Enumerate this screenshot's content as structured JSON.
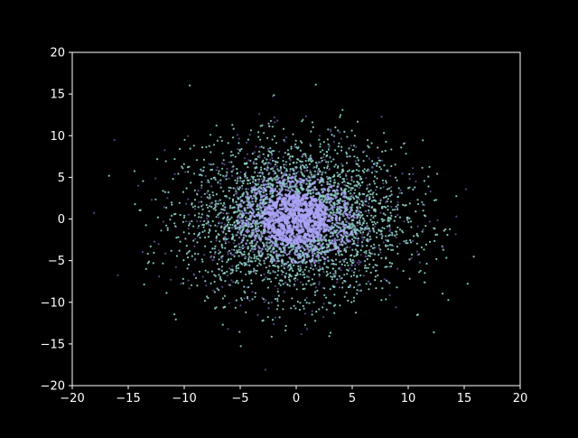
{
  "chart_data": {
    "type": "scatter",
    "title": "",
    "xlabel": "",
    "ylabel": "",
    "xlim": [
      -20,
      20
    ],
    "ylim": [
      -20,
      20
    ],
    "xticks": [
      -20,
      -15,
      -10,
      -5,
      0,
      5,
      10,
      15,
      20
    ],
    "yticks": [
      -20,
      -15,
      -10,
      -5,
      0,
      5,
      10,
      15,
      20
    ],
    "xtick_labels": [
      "−20",
      "−15",
      "−10",
      "−5",
      "0",
      "5",
      "10",
      "15",
      "20"
    ],
    "ytick_labels": [
      "−20",
      "−15",
      "−10",
      "−5",
      "0",
      "5",
      "10",
      "15",
      "20"
    ],
    "grid": false,
    "legend": "none",
    "colors": {
      "background": "#000000",
      "axes": "#ffffff",
      "points_outer": "#8dd3c7",
      "points_inner": "#a9a4f5",
      "points_dim": "#5a4e8c"
    },
    "series": [
      {
        "distribution": "gaussian",
        "center": [
          0,
          0
        ],
        "std": [
          4.8,
          4.5
        ],
        "count": 4000,
        "points": [
          [
            14.3,
            0.3
          ],
          [
            12.5,
            2.3
          ],
          [
            11.8,
            5.1
          ],
          [
            -13.0,
            -3.3
          ],
          [
            -12.9,
            2.3
          ],
          [
            -10.4,
            8.4
          ],
          [
            -11.2,
            -7.3
          ],
          [
            -10.1,
            -7.2
          ],
          [
            -3.3,
            12.6
          ],
          [
            0.6,
            11.9
          ],
          [
            0.8,
            -12.7
          ],
          [
            -2.1,
            -12.1
          ],
          [
            8.9,
            -10.6
          ],
          [
            -6.0,
            -10.1
          ],
          [
            10.4,
            6.1
          ],
          [
            6.5,
            8.6
          ],
          [
            -5.7,
            11.3
          ],
          [
            11.2,
            -3.4
          ],
          [
            -4.5,
            -11.2
          ],
          [
            3.5,
            11.0
          ]
        ]
      }
    ]
  }
}
